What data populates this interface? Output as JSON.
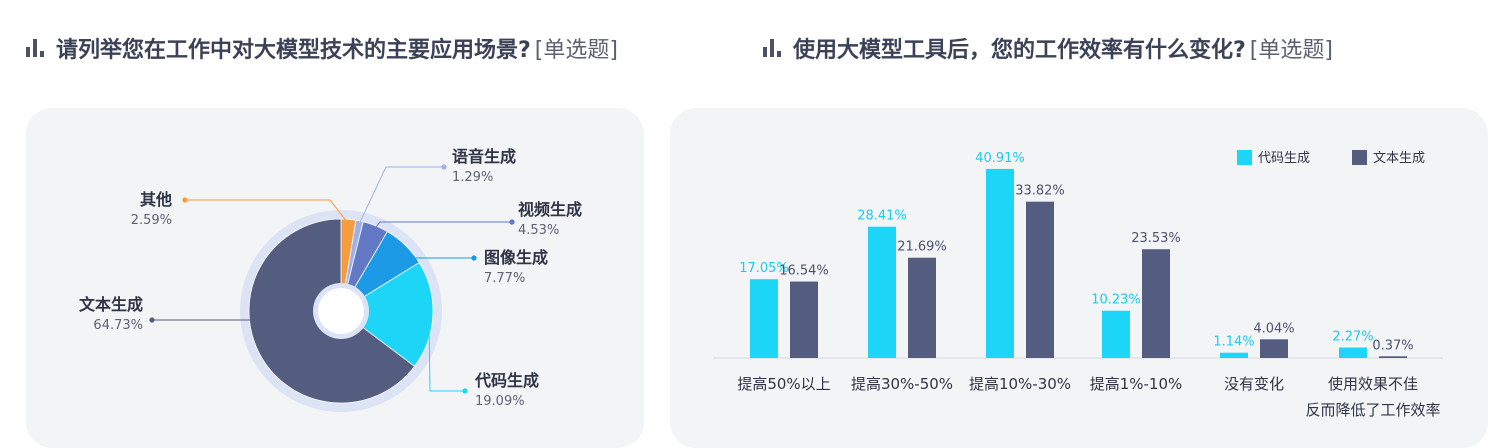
{
  "left_title": {
    "text": "请列举您在工作中对大模型技术的主要应用场景?",
    "tag": "[单选题]"
  },
  "right_title": {
    "text": "使用大模型工具后，您的工作效率有什么变化?",
    "tag": "[单选题]"
  },
  "colors": {
    "cyan": "#1dd5f7",
    "slate": "#545d80",
    "blue": "#1c9ae6",
    "periwinkle": "#6479c5",
    "orange": "#f79c3e",
    "ring": "#dbe3f5",
    "card_bg": "#f3f4f6"
  },
  "chart_data": [
    {
      "type": "pie",
      "variant": "donut",
      "slices": [
        {
          "label": "其他",
          "pct_label": "2.59%",
          "value": 2.59,
          "color": "#f79c3e"
        },
        {
          "label": "语音生成",
          "pct_label": "1.29%",
          "value": 1.29,
          "color": "#9fb2e8"
        },
        {
          "label": "视频生成",
          "pct_label": "4.53%",
          "value": 4.53,
          "color": "#6479c5"
        },
        {
          "label": "图像生成",
          "pct_label": "7.77%",
          "value": 7.77,
          "color": "#1c9ae6"
        },
        {
          "label": "代码生成",
          "pct_label": "19.09%",
          "value": 19.09,
          "color": "#1dd5f7"
        },
        {
          "label": "文本生成",
          "pct_label": "64.73%",
          "value": 64.73,
          "color": "#545d80"
        }
      ]
    },
    {
      "type": "bar",
      "categories": [
        [
          "提高50%以上"
        ],
        [
          "提高30%-50%"
        ],
        [
          "提高10%-30%"
        ],
        [
          "提高1%-10%"
        ],
        [
          "没有变化"
        ],
        [
          "使用效果不佳",
          "反而降低了工作效率"
        ]
      ],
      "series": [
        {
          "name": "代码生成",
          "color": "#1dd5f7",
          "values": [
            17.05,
            28.41,
            40.91,
            10.23,
            1.14,
            2.27
          ],
          "labels": [
            "17.05%",
            "28.41%",
            "40.91%",
            "10.23%",
            "1.14%",
            "2.27%"
          ]
        },
        {
          "name": "文本生成",
          "color": "#545d80",
          "values": [
            16.54,
            21.69,
            33.82,
            23.53,
            4.04,
            0.37
          ],
          "labels": [
            "16.54%",
            "21.69%",
            "33.82%",
            "23.53%",
            "4.04%",
            "0.37%"
          ]
        }
      ],
      "ylim": [
        0,
        45
      ],
      "legend": "top-right",
      "grid": false
    }
  ]
}
